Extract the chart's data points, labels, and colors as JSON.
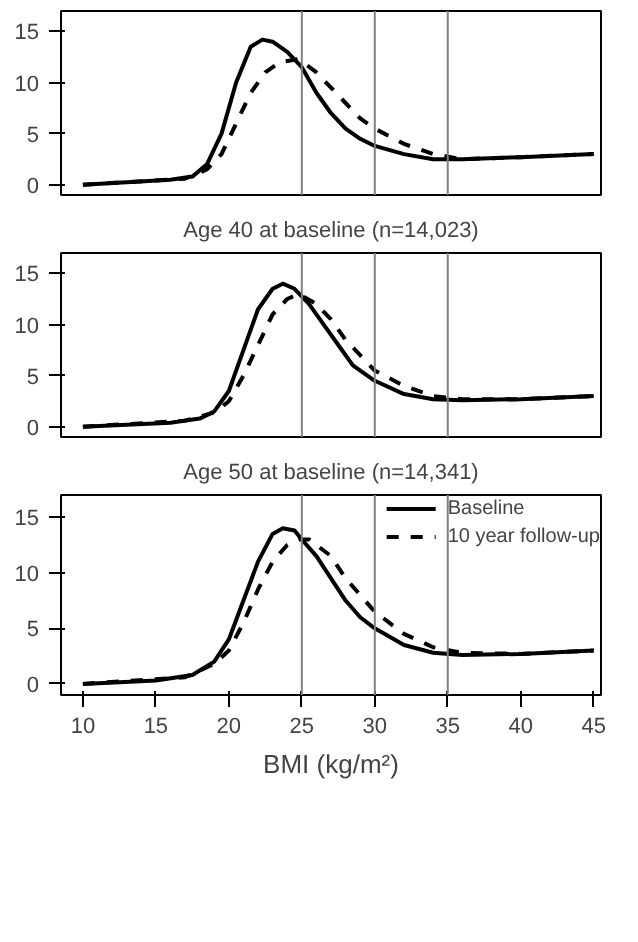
{
  "chart_data": [
    {
      "type": "line",
      "xlim": [
        8.5,
        45.5
      ],
      "ylim": [
        -1,
        17
      ],
      "yticks": [
        0,
        5,
        10,
        15
      ],
      "tick_labels": "y",
      "grid": false,
      "legend": false,
      "ref_lines": [
        {
          "axis": "x",
          "value": 25,
          "color": "#808080"
        },
        {
          "axis": "x",
          "value": 30,
          "color": "#808080"
        },
        {
          "axis": "x",
          "value": 35,
          "color": "#808080"
        }
      ],
      "series": [
        {
          "color": "#000000",
          "line_style": "solid",
          "x": [
            10,
            16,
            17.5,
            18.5,
            19.5,
            20.5,
            21.5,
            22.3,
            23,
            24,
            25,
            26,
            27,
            28,
            29,
            30,
            32,
            34,
            36,
            40,
            45
          ],
          "values": [
            0,
            0.5,
            0.8,
            2,
            5,
            10,
            13.5,
            14.2,
            14,
            13,
            11.5,
            9,
            7,
            5.5,
            4.5,
            3.8,
            3,
            2.5,
            2.5,
            2.7,
            3
          ]
        },
        {
          "color": "#000000",
          "line_style": "dashed",
          "x": [
            10,
            17,
            18.5,
            19.5,
            20.5,
            21.5,
            22.5,
            23.5,
            24.8,
            26,
            27,
            28,
            29,
            30,
            32,
            34,
            36,
            40,
            45
          ],
          "values": [
            0,
            0.6,
            1.5,
            3,
            6,
            9,
            11,
            12,
            12.3,
            11,
            9.5,
            8,
            6.5,
            5.5,
            4,
            3,
            2.5,
            2.7,
            3
          ]
        }
      ]
    },
    {
      "type": "line",
      "title": "Age 40 at baseline (n=14,023)",
      "xlim": [
        8.5,
        45.5
      ],
      "ylim": [
        -1,
        17
      ],
      "yticks": [
        0,
        5,
        10,
        15
      ],
      "tick_labels": "y",
      "grid": false,
      "legend": false,
      "ref_lines": [
        {
          "axis": "x",
          "value": 25,
          "color": "#808080"
        },
        {
          "axis": "x",
          "value": 30,
          "color": "#808080"
        },
        {
          "axis": "x",
          "value": 35,
          "color": "#808080"
        }
      ],
      "series": [
        {
          "color": "#000000",
          "line_style": "solid",
          "x": [
            10,
            16,
            18,
            19,
            20,
            21,
            22,
            23,
            23.7,
            24.5,
            25.5,
            26.5,
            27.5,
            28.5,
            30,
            32,
            34,
            36,
            40,
            45
          ],
          "values": [
            0,
            0.4,
            0.8,
            1.5,
            3.5,
            7.5,
            11.5,
            13.5,
            14,
            13.5,
            12,
            10,
            8,
            6,
            4.5,
            3.2,
            2.7,
            2.6,
            2.7,
            3
          ]
        },
        {
          "color": "#000000",
          "line_style": "dashed",
          "x": [
            10,
            17,
            19,
            20,
            21,
            22,
            23,
            24,
            24.8,
            26,
            27,
            28,
            29,
            30,
            32,
            34,
            36,
            40,
            45
          ],
          "values": [
            0,
            0.6,
            1.4,
            2.5,
            5,
            8,
            11,
            12.5,
            13,
            12,
            10.5,
            8.5,
            7,
            5.5,
            4,
            3,
            2.7,
            2.7,
            3
          ]
        }
      ]
    },
    {
      "type": "line",
      "title": "Age 50 at baseline (n=14,341)",
      "xlabel": "BMI (kg/m²)",
      "xlim": [
        8.5,
        45.5
      ],
      "ylim": [
        -1,
        17
      ],
      "xticks": [
        10,
        15,
        20,
        25,
        30,
        35,
        40,
        45
      ],
      "yticks": [
        0,
        5,
        10,
        15
      ],
      "grid": false,
      "legend": "top right",
      "ref_lines": [
        {
          "axis": "x",
          "value": 25,
          "color": "#808080"
        },
        {
          "axis": "x",
          "value": 30,
          "color": "#808080"
        },
        {
          "axis": "x",
          "value": 35,
          "color": "#808080"
        }
      ],
      "series": [
        {
          "name": "Baseline",
          "color": "#000000",
          "line_style": "solid",
          "x": [
            10,
            15,
            17.5,
            19,
            20,
            21,
            22,
            23,
            23.7,
            24.5,
            25,
            26,
            27,
            28,
            29,
            30,
            32,
            34,
            36,
            40,
            45
          ],
          "values": [
            0,
            0.3,
            0.8,
            2,
            4,
            7.5,
            11,
            13.5,
            14,
            13.8,
            13,
            11.5,
            9.5,
            7.5,
            6,
            5,
            3.5,
            2.8,
            2.6,
            2.7,
            3
          ]
        },
        {
          "name": "10 year follow-up",
          "color": "#000000",
          "line_style": "dashed",
          "x": [
            10,
            17,
            19,
            20,
            21,
            22,
            23,
            24,
            24.8,
            25.5,
            27,
            28,
            30,
            32,
            34,
            36,
            40,
            45
          ],
          "values": [
            0,
            0.6,
            1.8,
            3,
            5.5,
            8.5,
            11,
            12.5,
            13,
            13,
            11.5,
            9.5,
            6.5,
            4.5,
            3.3,
            2.8,
            2.7,
            3
          ]
        }
      ]
    }
  ]
}
